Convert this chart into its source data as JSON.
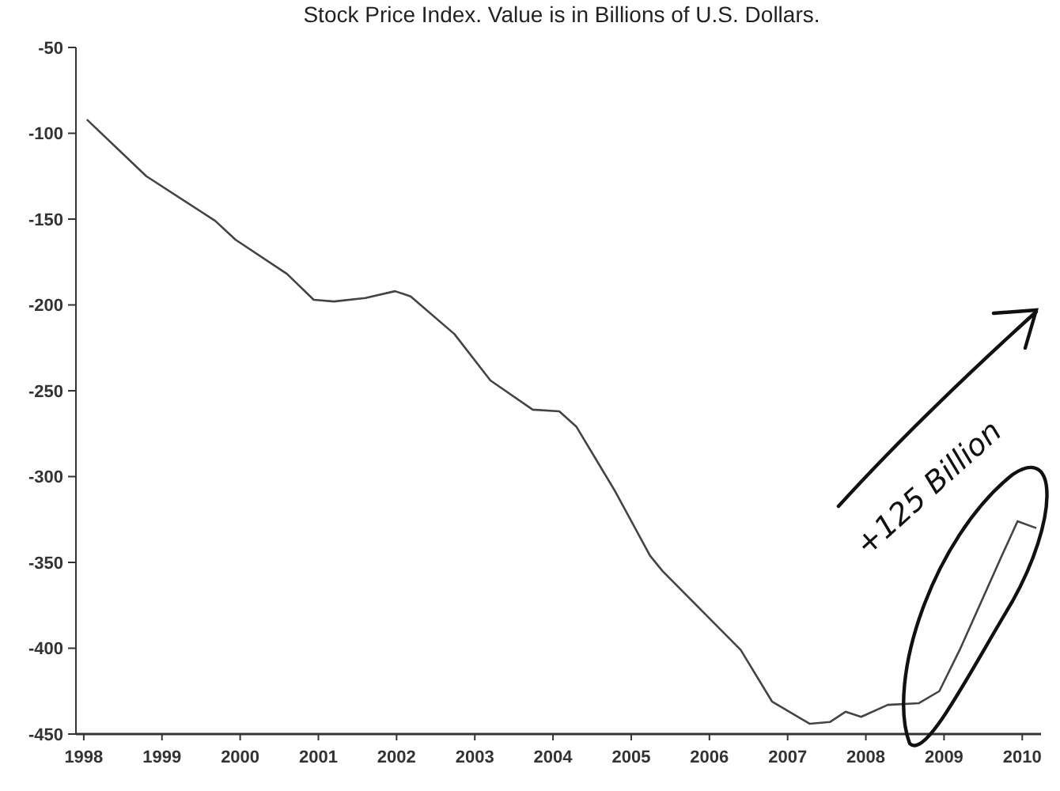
{
  "chart_data": {
    "type": "line",
    "title": "Stock Price Index. Value is in Billions of U.S. Dollars.",
    "x": [
      1998.04,
      1998.8,
      1999.68,
      1999.94,
      2000.6,
      2000.94,
      2001.2,
      2001.6,
      2001.98,
      2002.18,
      2002.74,
      2003.2,
      2003.74,
      2004.08,
      2004.3,
      2004.8,
      2005.24,
      2005.4,
      2006.4,
      2006.8,
      2007.28,
      2007.54,
      2007.74,
      2007.94,
      2008.28,
      2008.68,
      2008.94,
      2009.2,
      2009.74,
      2009.94,
      2010.18
    ],
    "series": [
      {
        "color": "#444444",
        "values": [
          -92,
          -125,
          -151,
          -162,
          -182,
          -197,
          -198,
          -196,
          -192,
          -195,
          -217,
          -244,
          -261,
          -262,
          -271,
          -309,
          -346,
          -355,
          -401,
          -431,
          -444,
          -443,
          -437,
          -440,
          -433,
          -432,
          -425,
          -401,
          -346,
          -326,
          -330
        ]
      }
    ],
    "xlim": [
      1997.9,
      2010.24
    ],
    "xticks": [
      1998,
      1999,
      2000,
      2001,
      2002,
      2003,
      2004,
      2005,
      2006,
      2007,
      2008,
      2009,
      2010
    ],
    "ylim": [
      -450,
      -50
    ],
    "yticks": [
      -450,
      -400,
      -350,
      -300,
      -250,
      -200,
      -150,
      -100,
      -50
    ],
    "grid": false,
    "marker": "none",
    "line_style": "solid",
    "annotations": [
      "+125 Billion"
    ]
  }
}
